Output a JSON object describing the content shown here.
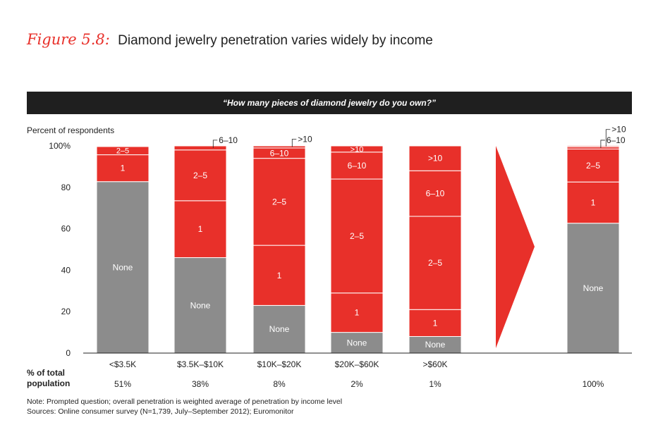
{
  "title": {
    "figure_label": "Figure 5.8:",
    "text": "Diamond jewelry penetration varies widely by income"
  },
  "question": "“How many pieces of diamond jewelry do you own?”",
  "y_axis_label": "Percent of respondents",
  "population_label": "% of total population",
  "notes": [
    "Note: Prompted question; overall penetration is weighted average of penetration by income level",
    "Sources: Online consumer survey (N=1,739, July–September 2012); Euromonitor"
  ],
  "colors": {
    "none": "#8c8c8c",
    "owned": "#e8302a",
    "text_dark": "#222222"
  },
  "chart_data": {
    "type": "bar",
    "stacked": true,
    "title": "Diamond jewelry penetration varies widely by income",
    "ylabel": "Percent of respondents",
    "ylim": [
      0,
      100
    ],
    "yticks": [
      "0",
      "20",
      "40",
      "60",
      "80",
      "100%"
    ],
    "segments": [
      "None",
      "1",
      "2–5",
      "6–10",
      ">10"
    ],
    "categories": [
      {
        "label": "<$3.5K",
        "population": "51%",
        "values": [
          83,
          13,
          4,
          0.3,
          0
        ],
        "labels": [
          "None",
          "1",
          "2–5",
          "",
          ""
        ],
        "callouts": []
      },
      {
        "label": "$3.5K–$10K",
        "population": "38%",
        "values": [
          47,
          28,
          25,
          2,
          0
        ],
        "labels": [
          "None",
          "1",
          "2–5",
          "",
          ""
        ],
        "callouts": [
          {
            "segment": "6–10",
            "text": "6–10"
          }
        ]
      },
      {
        "label": "$10K–$20K",
        "population": "8%",
        "values": [
          23,
          29,
          42,
          5,
          1
        ],
        "labels": [
          "None",
          "1",
          "2–5",
          "6–10",
          ""
        ],
        "callouts": [
          {
            "segment": ">10",
            "text": ">10"
          }
        ]
      },
      {
        "label": "$20K–$60K",
        "population": "2%",
        "values": [
          10,
          19,
          55,
          13,
          3
        ],
        "labels": [
          "None",
          "1",
          "2–5",
          "6–10",
          ">10"
        ],
        "callouts": []
      },
      {
        "label": ">$60K",
        "population": "1%",
        "values": [
          8,
          13,
          45,
          22,
          12
        ],
        "labels": [
          "None",
          "1",
          "2–5",
          "6–10",
          ">10"
        ],
        "callouts": []
      },
      {
        "label": "",
        "population": "100%",
        "values": [
          63,
          20,
          16,
          1,
          0.5
        ],
        "labels": [
          "None",
          "1",
          "2–5",
          "",
          ""
        ],
        "callouts": [
          {
            "segment": ">10",
            "text": ">10"
          },
          {
            "segment": "6–10",
            "text": "6–10"
          }
        ]
      }
    ]
  }
}
